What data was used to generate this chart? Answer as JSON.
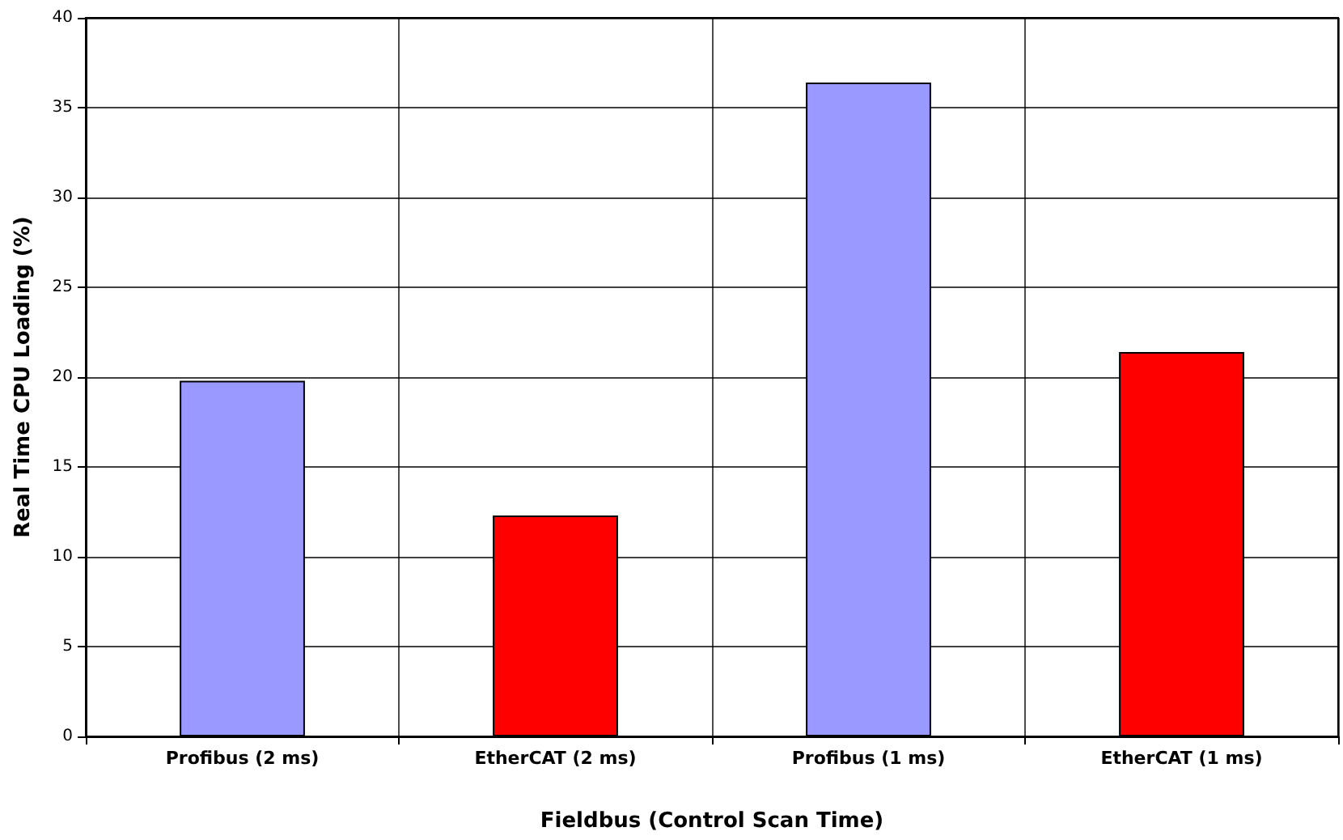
{
  "chart_data": {
    "type": "bar",
    "xlabel": "Fieldbus (Control Scan Time)",
    "ylabel": "Real Time CPU Loading (%)",
    "categories": [
      "Profibus (2 ms)",
      "EtherCAT (2 ms)",
      "Profibus (1 ms)",
      "EtherCAT (1 ms)"
    ],
    "values": [
      19.8,
      12.3,
      36.4,
      21.4
    ],
    "colors": [
      "#9999ff",
      "#ff0000",
      "#9999ff",
      "#ff0000"
    ],
    "ylim": [
      0,
      40
    ],
    "yticks": [
      0,
      5,
      10,
      15,
      20,
      25,
      30,
      35,
      40
    ],
    "grid": true
  }
}
